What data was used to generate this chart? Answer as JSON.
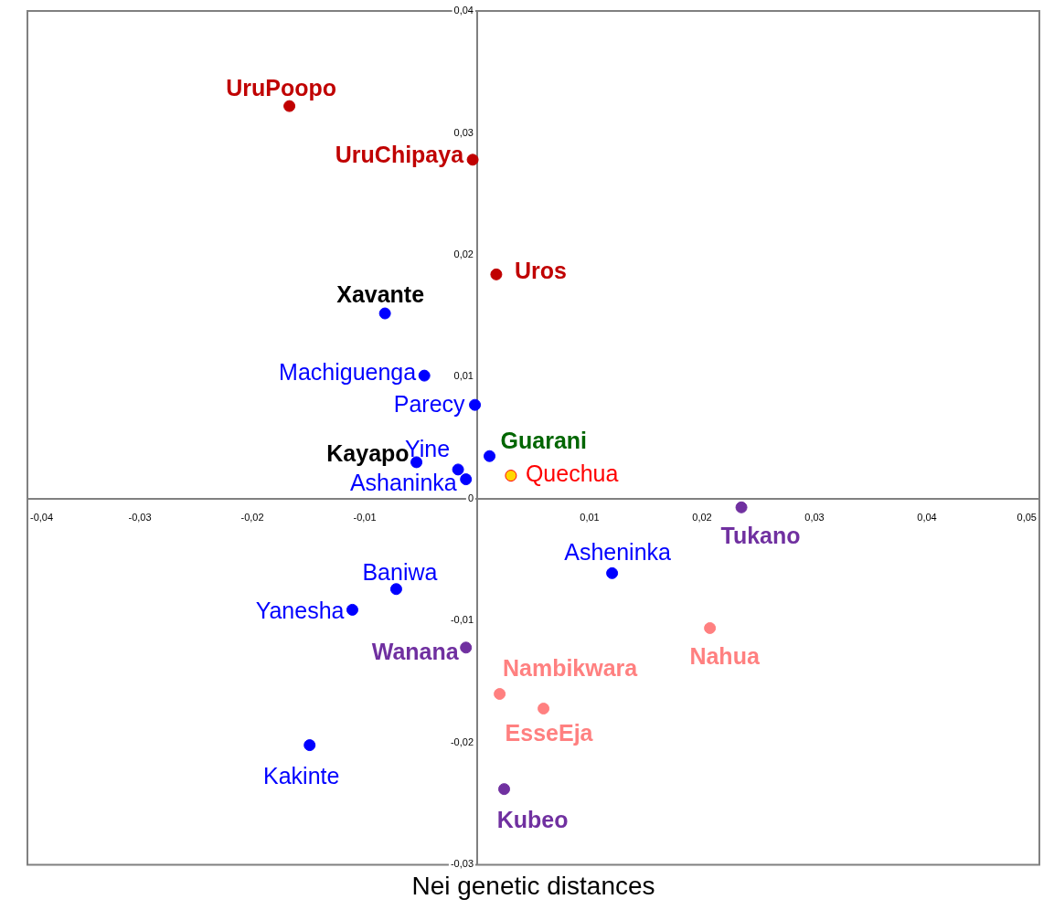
{
  "chart_data": {
    "type": "scatter",
    "title": "Nei genetic distances",
    "legend": false,
    "grid": false,
    "marker": "circle",
    "xlim": [
      -0.04,
      0.05
    ],
    "ylim": [
      -0.03,
      0.04
    ],
    "xticks": [
      {
        "value": -0.04,
        "label": "-0,04"
      },
      {
        "value": -0.03,
        "label": "-0,03"
      },
      {
        "value": -0.02,
        "label": "-0,02"
      },
      {
        "value": -0.01,
        "label": "-0,01"
      },
      {
        "value": 0,
        "label": null
      },
      {
        "value": 0.01,
        "label": "0,01"
      },
      {
        "value": 0.02,
        "label": "0,02"
      },
      {
        "value": 0.03,
        "label": "0,03"
      },
      {
        "value": 0.04,
        "label": "0,04"
      },
      {
        "value": 0.05,
        "label": "0,05"
      }
    ],
    "yticks": [
      {
        "value": -0.03,
        "label": "-0,03"
      },
      {
        "value": -0.02,
        "label": "-0,02"
      },
      {
        "value": -0.01,
        "label": "-0,01"
      },
      {
        "value": 0,
        "label": "0"
      },
      {
        "value": 0.01,
        "label": "0,01"
      },
      {
        "value": 0.02,
        "label": "0,02"
      },
      {
        "value": 0.03,
        "label": "0,03"
      },
      {
        "value": 0.04,
        "label": "0,04"
      }
    ],
    "series": [
      {
        "name": "UruPoopo",
        "color": "#c00000",
        "colors": [
          "#c00000"
        ],
        "x": [
          -0.0167
        ],
        "values": [
          0.0322
        ]
      },
      {
        "name": "UruChipaya",
        "color": "#c00000",
        "colors": [
          "#c00000"
        ],
        "x": [
          -0.0004
        ],
        "values": [
          0.0278
        ]
      },
      {
        "name": "Uros",
        "color": "#c00000",
        "colors": [
          "#c00000"
        ],
        "x": [
          0.0017
        ],
        "values": [
          0.0184
        ]
      },
      {
        "name": "Xavante",
        "color": "#000000",
        "colors": [
          "#0000ff"
        ],
        "x": [
          -0.0082
        ],
        "values": [
          0.0152
        ]
      },
      {
        "name": "Machiguenga",
        "color": "#0000ff",
        "colors": [
          "#0000ff"
        ],
        "x": [
          -0.0047
        ],
        "values": [
          0.0101
        ]
      },
      {
        "name": "Parecy",
        "color": "#0000ff",
        "colors": [
          "#0000ff"
        ],
        "x": [
          -0.0002
        ],
        "values": [
          0.0077
        ]
      },
      {
        "name": "Kayapo",
        "color": "#000000",
        "colors": [
          "#0000ff"
        ],
        "x": [
          -0.0054
        ],
        "values": [
          0.003
        ]
      },
      {
        "name": "Yine",
        "color": "#0000ff",
        "colors": [
          "#0000ff"
        ],
        "x": [
          -0.0017
        ],
        "values": [
          0.0024
        ]
      },
      {
        "name": "Ashaninka",
        "color": "#0000ff",
        "colors": [
          "#0000ff"
        ],
        "x": [
          -0.001
        ],
        "values": [
          0.0016
        ]
      },
      {
        "name": "Guarani",
        "color": "#006600",
        "colors": [
          "#0000ff"
        ],
        "x": [
          0.0011
        ],
        "values": [
          0.0035
        ]
      },
      {
        "name": "Quechua",
        "color": "#ff0000",
        "colors": [
          "#ffd700"
        ],
        "x": [
          0.003
        ],
        "values": [
          0.0019
        ]
      },
      {
        "name": "Tukano",
        "color": "#7030a0",
        "colors": [
          "#7030a0"
        ],
        "x": [
          0.0235
        ],
        "values": [
          -0.0007
        ]
      },
      {
        "name": "Asheninka",
        "color": "#0000ff",
        "colors": [
          "#0000ff"
        ],
        "x": [
          0.012
        ],
        "values": [
          -0.0061
        ]
      },
      {
        "name": "Baniwa",
        "color": "#0000ff",
        "colors": [
          "#0000ff"
        ],
        "x": [
          -0.0072
        ],
        "values": [
          -0.0074
        ]
      },
      {
        "name": "Yanesha",
        "color": "#0000ff",
        "colors": [
          "#0000ff"
        ],
        "x": [
          -0.0111
        ],
        "values": [
          -0.0091
        ]
      },
      {
        "name": "Wanana",
        "color": "#7030a0",
        "colors": [
          "#7030a0"
        ],
        "x": [
          -0.001
        ],
        "values": [
          -0.0122
        ]
      },
      {
        "name": "Nahua",
        "color": "#ff8080",
        "colors": [
          "#ff8080"
        ],
        "x": [
          0.0207
        ],
        "values": [
          -0.0106
        ]
      },
      {
        "name": "Nambikwara",
        "color": "#ff8080",
        "colors": [
          "#ff8080"
        ],
        "x": [
          0.002
        ],
        "values": [
          -0.016
        ]
      },
      {
        "name": "EsseEja",
        "color": "#ff8080",
        "colors": [
          "#ff8080"
        ],
        "x": [
          0.0059
        ],
        "values": [
          -0.0172
        ]
      },
      {
        "name": "Kakinte",
        "color": "#0000ff",
        "colors": [
          "#0000ff"
        ],
        "x": [
          -0.0149
        ],
        "values": [
          -0.0202
        ]
      },
      {
        "name": "Kubeo",
        "color": "#7030a0",
        "colors": [
          "#7030a0"
        ],
        "x": [
          0.0024
        ],
        "values": [
          -0.0238
        ]
      }
    ]
  }
}
